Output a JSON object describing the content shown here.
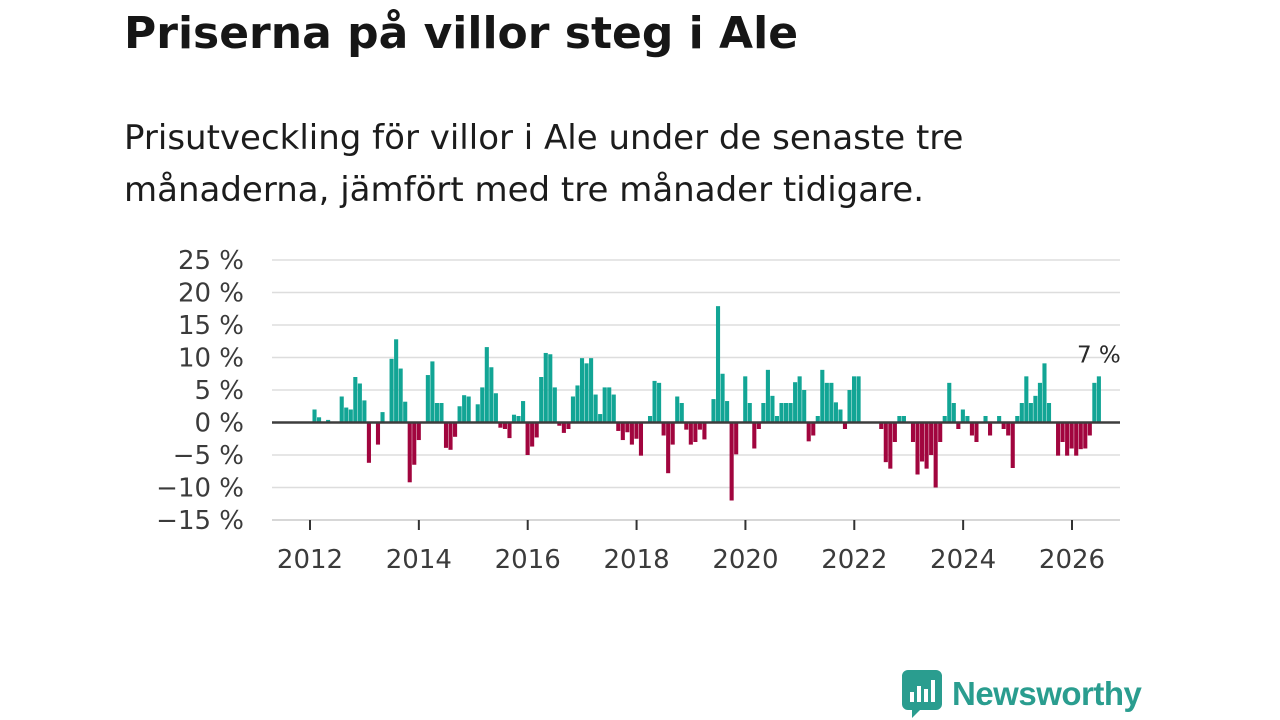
{
  "title": "Priserna på villor steg i Ale",
  "subtitle": "Prisutveckling för villor i Ale under de senaste tre månaderna, jämfört med tre månader tidigare.",
  "brand": {
    "name": "Newsworthy",
    "color": "#2a9d8f",
    "icon": "newsworthy-logo-icon"
  },
  "colors": {
    "positive": "#12a595",
    "negative": "#a1053e",
    "grid": "#dddddd",
    "zero_line": "#3d3d3d"
  },
  "chart_data": {
    "type": "bar",
    "title": "Priserna på villor steg i Ale",
    "xlabel": "",
    "ylabel": "",
    "ylim": [
      -15,
      25
    ],
    "yticks": [
      -15,
      -10,
      -5,
      0,
      5,
      10,
      15,
      20,
      25
    ],
    "ytick_labels": [
      "−15 %",
      "−10 %",
      "−5 %",
      "0 %",
      "5 %",
      "10 %",
      "15 %",
      "20 %",
      "25 %"
    ],
    "xticks": [
      2012,
      2014,
      2016,
      2018,
      2020,
      2022,
      2024,
      2026
    ],
    "xtick_labels": [
      "2012",
      "2014",
      "2016",
      "2018",
      "2020",
      "2022",
      "2024",
      "2026"
    ],
    "x_start": 2011.25,
    "x_step": 0.0833,
    "grid": true,
    "annotation": {
      "label": "7 %",
      "value": 7
    },
    "values": [
      0,
      0,
      0,
      0,
      0,
      0,
      0,
      0,
      0,
      0,
      2,
      0.8,
      0,
      0.4,
      0,
      0,
      4,
      2.3,
      2,
      7,
      6,
      3.4,
      -6.2,
      0,
      -3.4,
      1.6,
      0,
      9.8,
      12.8,
      8.3,
      3.2,
      -9.2,
      -6.5,
      -2.7,
      0,
      7.3,
      9.4,
      3,
      3,
      -3.9,
      -4.2,
      -2.2,
      2.5,
      4.2,
      4,
      0,
      2.8,
      5.4,
      11.6,
      8.5,
      4.5,
      -0.8,
      -1,
      -2.4,
      1.2,
      1,
      3.3,
      -5,
      -3.7,
      -2.3,
      7,
      10.7,
      10.5,
      5.4,
      -0.5,
      -1.6,
      -1,
      4,
      5.7,
      9.9,
      9.1,
      9.9,
      4.3,
      1.3,
      5.4,
      5.4,
      4.3,
      -1.3,
      -2.7,
      -1.5,
      -3.4,
      -2.5,
      -5.1,
      0,
      1,
      6.4,
      6.1,
      -2,
      -7.8,
      -3.4,
      4,
      3,
      -1.1,
      -3.4,
      -3,
      -1.1,
      -2.6,
      0,
      3.6,
      17.9,
      7.5,
      3.3,
      -12,
      -4.9,
      0,
      7.1,
      3,
      -4,
      -1,
      3,
      8.1,
      4.1,
      1,
      3,
      3,
      3,
      6.2,
      7.1,
      5,
      -2.9,
      -2,
      1,
      8.1,
      6.1,
      6.1,
      3.1,
      2,
      -1,
      5,
      7.1,
      7.1,
      0,
      0,
      0,
      0,
      -1,
      -6.1,
      -7.1,
      -3,
      1,
      1,
      0,
      -3,
      -8,
      -6,
      -7.1,
      -5,
      -10,
      -3,
      1,
      6.1,
      3,
      -1,
      2,
      1,
      -2,
      -3,
      0,
      1,
      -2,
      0,
      1,
      -1,
      -2,
      -7,
      1,
      3,
      7.1,
      3,
      4.1,
      6.1,
      9.1,
      3,
      0,
      -5.1,
      -3,
      -5.1,
      -4,
      -5.1,
      -4.1,
      -4,
      -2,
      6.1,
      7.1
    ]
  }
}
